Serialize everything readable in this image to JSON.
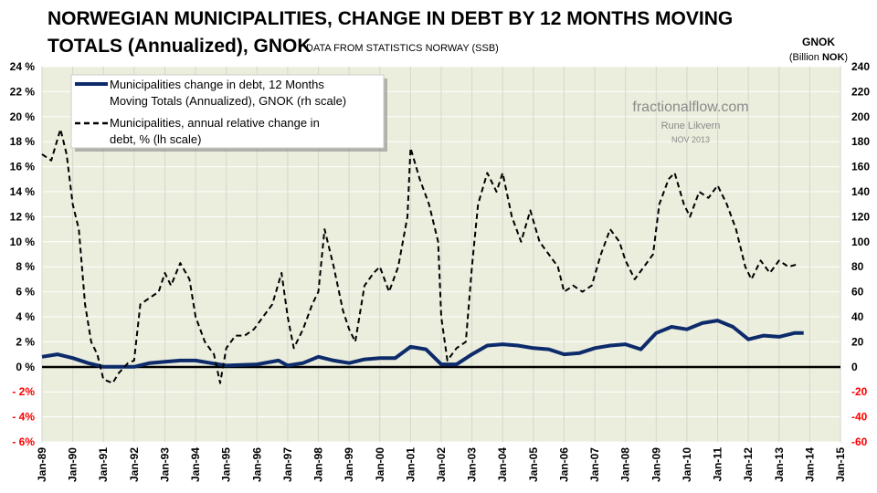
{
  "chart_data": {
    "type": "line",
    "title_line1": "NORWEGIAN MUNICIPALITIES, CHANGE IN DEBT BY 12 MONTHS MOVING",
    "title_line2": "TOTALS (Annualized), GNOK",
    "source": "DATA FROM  STATISTICS NORWAY (SSB)",
    "right_axis_title": "GNOK",
    "right_axis_unit_prefix": "(Billion ",
    "right_axis_unit_bold": "NOK",
    "right_axis_unit_suffix": ")",
    "watermark": {
      "site": "fractionalflow.com",
      "author": "Rune Likvern",
      "date": "NOV 2013"
    },
    "xlim": [
      1989,
      2015
    ],
    "ylim_left": [
      -6,
      24
    ],
    "ylim_right": [
      -60,
      240
    ],
    "x_ticks": [
      "Jan-89",
      "Jan-90",
      "Jan-91",
      "Jan-92",
      "Jan-93",
      "Jan-94",
      "Jan-95",
      "Jan-96",
      "Jan-97",
      "Jan-98",
      "Jan-99",
      "Jan-00",
      "Jan-01",
      "Jan-02",
      "Jan-03",
      "Jan-04",
      "Jan-05",
      "Jan-06",
      "Jan-07",
      "Jan-08",
      "Jan-09",
      "Jan-10",
      "Jan-11",
      "Jan-12",
      "Jan-13",
      "Jan-14",
      "Jan-15"
    ],
    "y_ticks_left": [
      "24%",
      "22%",
      "20%",
      "18%",
      "16%",
      "14%",
      "12%",
      "10%",
      "8%",
      "6%",
      "4%",
      "2%",
      "0%",
      "-2%",
      "-4%",
      "-6%"
    ],
    "y_ticks_right": [
      "240",
      "220",
      "200",
      "180",
      "160",
      "140",
      "120",
      "100",
      "80",
      "60",
      "40",
      "20",
      "0",
      "-20",
      "-40",
      "-60"
    ],
    "negative_tick_color": "#ff0000",
    "plot_bg": "#ebeedd",
    "series": [
      {
        "name": "Municipalities change in debt, 12 Months Moving Totals (Annualized), GNOK (rh scale)",
        "legend_line1": "Municipalities change in debt, 12 Months",
        "legend_line2": "Moving Totals (Annualized), GNOK (rh scale)",
        "axis": "right",
        "color": "#0d2b6b",
        "style": "solid",
        "x": [
          1989,
          1989.5,
          1990,
          1990.5,
          1991,
          1992,
          1992.5,
          1993,
          1993.5,
          1994,
          1994.5,
          1995,
          1996,
          1996.7,
          1997,
          1997.5,
          1998,
          1998.5,
          1999,
          1999.5,
          2000,
          2000.5,
          2001,
          2001.5,
          2002,
          2002.5,
          2003,
          2003.5,
          2004,
          2004.5,
          2005,
          2005.5,
          2006,
          2006.5,
          2007,
          2007.5,
          2008,
          2008.5,
          2009,
          2009.5,
          2010,
          2010.5,
          2011,
          2011.5,
          2012,
          2012.5,
          2013,
          2013.5,
          2013.8
        ],
        "y": [
          8,
          10,
          7,
          3,
          0,
          0,
          3,
          4,
          5,
          5,
          3,
          1,
          2,
          5,
          1,
          3,
          8,
          5,
          3,
          6,
          7,
          7,
          16,
          14,
          2,
          2,
          10,
          17,
          18,
          17,
          15,
          14,
          10,
          11,
          15,
          17,
          18,
          14,
          27,
          32,
          30,
          35,
          37,
          32,
          22,
          25,
          24,
          27,
          27
        ]
      },
      {
        "name": "Municipalities, annual relative change in debt, % (lh scale)",
        "legend_line1": "Municipalities, annual  relative change in",
        "legend_line2": "debt, % (lh scale)",
        "axis": "left",
        "color": "#000000",
        "style": "dashed",
        "x": [
          1989,
          1989.3,
          1989.6,
          1989.8,
          1990,
          1990.2,
          1990.4,
          1990.6,
          1990.8,
          1991,
          1991.3,
          1991.5,
          1991.8,
          1992,
          1992.2,
          1992.5,
          1992.8,
          1993,
          1993.2,
          1993.5,
          1993.8,
          1994,
          1994.3,
          1994.6,
          1994.8,
          1995,
          1995.3,
          1995.6,
          1995.9,
          1996.2,
          1996.5,
          1996.8,
          1997,
          1997.2,
          1997.5,
          1997.8,
          1998,
          1998.2,
          1998.5,
          1998.8,
          1999,
          1999.2,
          1999.5,
          1999.8,
          2000,
          2000.3,
          2000.6,
          2000.9,
          2001,
          2001.3,
          2001.6,
          2001.9,
          2002,
          2002.2,
          2002.5,
          2002.8,
          2003,
          2003.2,
          2003.5,
          2003.8,
          2004,
          2004.3,
          2004.6,
          2004.9,
          2005.2,
          2005.5,
          2005.8,
          2006,
          2006.3,
          2006.6,
          2006.9,
          2007.2,
          2007.5,
          2007.8,
          2008,
          2008.3,
          2008.6,
          2008.9,
          2009.1,
          2009.4,
          2009.6,
          2009.9,
          2010.1,
          2010.4,
          2010.7,
          2011,
          2011.3,
          2011.6,
          2011.9,
          2012.1,
          2012.4,
          2012.7,
          2013,
          2013.3,
          2013.6
        ],
        "y": [
          17,
          16.5,
          19,
          17,
          13,
          11,
          5,
          2,
          1,
          -1,
          -1.3,
          -0.5,
          0.3,
          0.5,
          5,
          5.5,
          6,
          7.5,
          6.5,
          8.3,
          7,
          4,
          2,
          1,
          -1.3,
          1.5,
          2.5,
          2.5,
          3,
          4,
          5,
          7.5,
          4,
          1.5,
          3,
          5,
          6,
          11,
          8,
          4.5,
          3,
          2,
          6.5,
          7.5,
          8,
          6,
          8,
          12,
          17.5,
          15,
          13,
          10,
          4,
          0.5,
          1.5,
          2,
          8,
          13,
          15.5,
          14,
          15.5,
          12,
          10,
          12.5,
          10,
          9,
          8,
          6,
          6.5,
          6,
          6.5,
          9,
          11,
          10,
          8.5,
          7,
          8,
          9,
          13,
          15,
          15.5,
          13,
          12,
          14,
          13.5,
          14.5,
          13,
          11,
          8,
          7,
          8.5,
          7.5,
          8.5,
          8,
          8.2
        ]
      }
    ]
  }
}
